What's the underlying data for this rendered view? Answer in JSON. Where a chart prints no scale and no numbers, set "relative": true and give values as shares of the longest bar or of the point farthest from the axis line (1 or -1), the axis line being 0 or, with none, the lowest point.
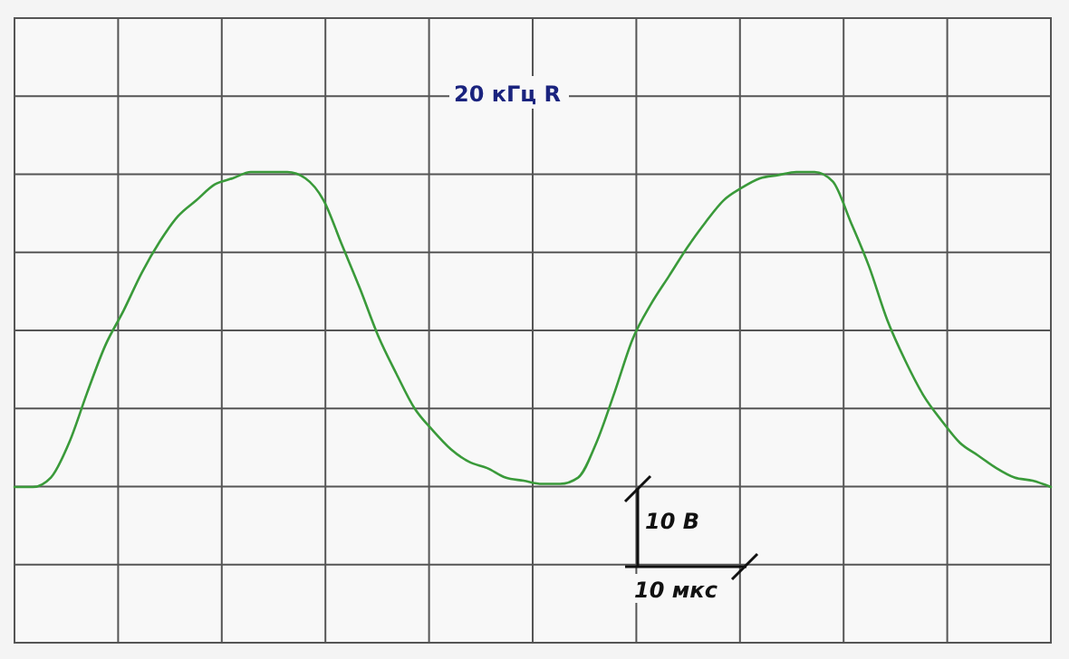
{
  "chart_data": {
    "type": "line",
    "title": "20 кГц R",
    "relative": true,
    "grid": true,
    "categories": [
      null,
      null,
      null,
      null,
      null,
      null,
      null,
      null,
      null,
      null,
      null,
      null,
      null,
      null,
      null,
      null,
      null,
      null,
      null,
      null,
      null,
      null,
      null,
      null,
      null,
      null,
      null,
      null,
      null,
      null,
      null,
      null,
      null,
      null,
      null,
      null,
      null,
      null,
      null,
      null,
      null,
      null,
      null,
      null,
      null,
      null,
      null,
      null,
      null,
      null,
      null,
      null,
      null,
      null,
      null,
      null,
      null,
      null
    ],
    "series": [
      {
        "color": "#3a9a3a",
        "values": [
          0,
          0,
          0.03,
          0.14,
          0.3,
          0.45,
          0.56,
          0.68,
          0.78,
          0.86,
          0.91,
          0.96,
          0.98,
          1.0,
          1.0,
          1.0,
          0.98,
          0.91,
          0.77,
          0.63,
          0.48,
          0.36,
          0.25,
          0.18,
          0.12,
          0.08,
          0.06,
          0.03,
          0.02,
          0.01,
          0.01,
          0.03,
          0.14,
          0.3,
          0.47,
          0.58,
          0.67,
          0.76,
          0.84,
          0.91,
          0.95,
          0.98,
          0.99,
          1.0,
          1.0,
          0.97,
          0.84,
          0.7,
          0.53,
          0.4,
          0.29,
          0.21,
          0.14,
          0.1,
          0.06,
          0.03,
          0.02,
          0
        ]
      }
    ],
    "annotations": [
      "10 В",
      "10 мкс"
    ]
  }
}
